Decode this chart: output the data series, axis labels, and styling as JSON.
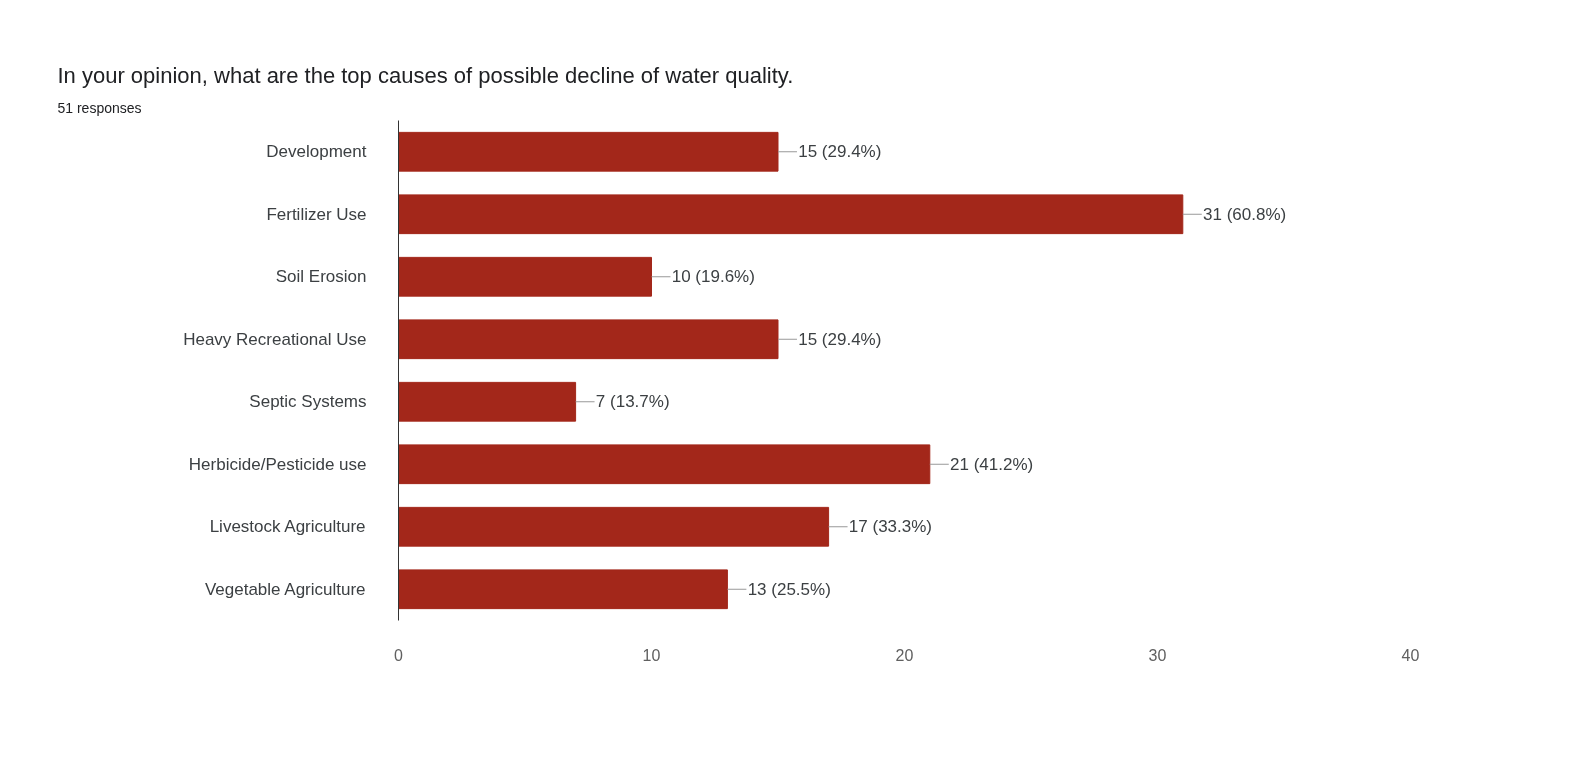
{
  "chart_data": {
    "type": "bar",
    "orientation": "horizontal",
    "title": "In your opinion, what are the top causes of possible decline of water quality.",
    "subtitle": "51 responses",
    "categories": [
      "Development",
      "Fertilizer Use",
      "Soil Erosion",
      "Heavy Recreational Use",
      "Septic Systems",
      "Herbicide/Pesticide use",
      "Livestock Agriculture",
      "Vegetable Agriculture"
    ],
    "values": [
      15,
      31,
      10,
      15,
      7,
      21,
      17,
      13
    ],
    "value_labels": [
      "15 (29.4%)",
      "31 (60.8%)",
      "10 (19.6%)",
      "15 (29.4%)",
      "7 (13.7%)",
      "21 (41.2%)",
      "17 (33.3%)",
      "13 (25.5%)"
    ],
    "color": "#a3271a",
    "xlim": [
      0,
      40
    ],
    "xticks": [
      0,
      10,
      20,
      30,
      40
    ],
    "grid": false
  }
}
